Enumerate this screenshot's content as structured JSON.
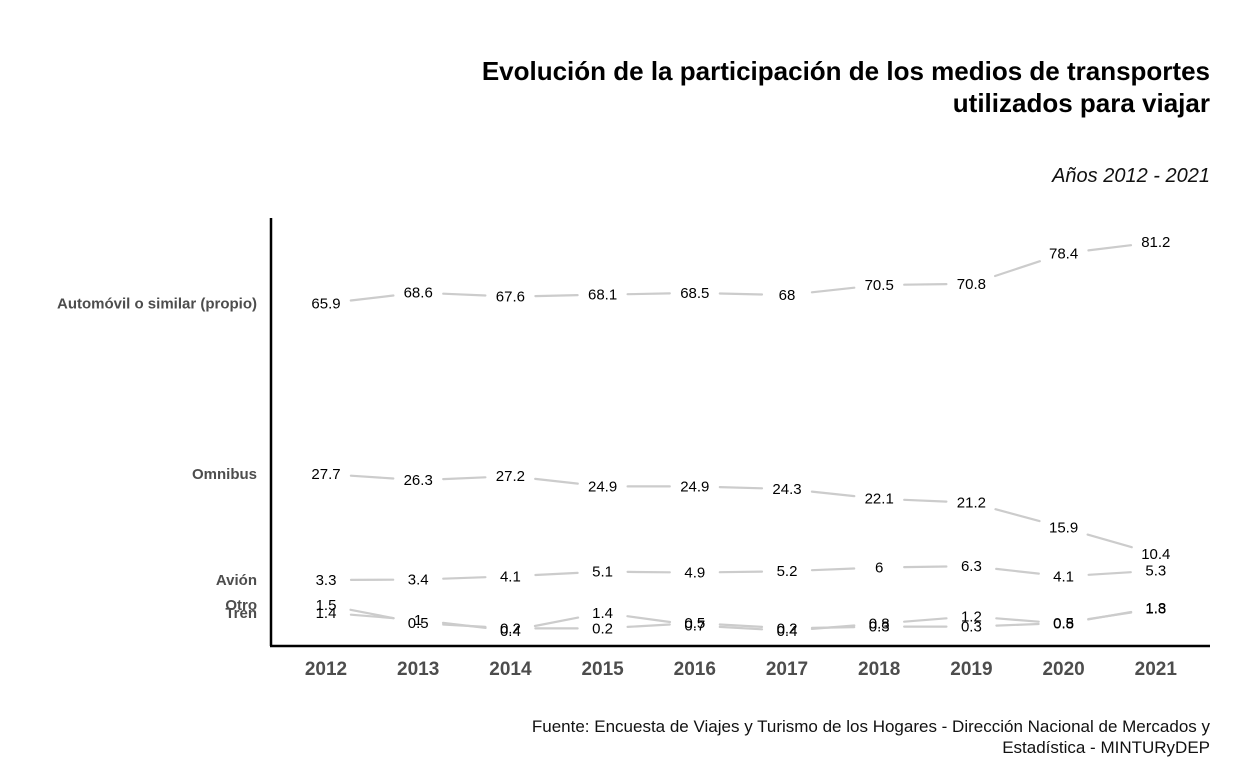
{
  "title": "Evolución de la participación de los medios de transportes utilizados para viajar",
  "subtitle": "Años 2012 - 2021",
  "source": "Fuente: Encuesta de Viajes y Turismo de los Hogares - Dirección Nacional de Mercados y Estadística - MINTURyDEP",
  "colors": {
    "connector": "#cccccc",
    "axis": "#000000",
    "row_label": "#4d4d4d",
    "tick_label": "#4d4d4d",
    "value_label": "#000000"
  },
  "chart_data": {
    "type": "line",
    "categories": [
      "2012",
      "2013",
      "2014",
      "2015",
      "2016",
      "2017",
      "2018",
      "2019",
      "2020",
      "2021"
    ],
    "series": [
      {
        "name": "Automóvil o similar (propio)",
        "values": [
          65.9,
          68.6,
          67.6,
          68.1,
          68.5,
          68,
          70.5,
          70.8,
          78.4,
          81.2
        ]
      },
      {
        "name": "Omnibus",
        "values": [
          27.7,
          26.3,
          27.2,
          24.9,
          24.9,
          24.3,
          22.1,
          21.2,
          15.9,
          10.4
        ]
      },
      {
        "name": "Avión",
        "values": [
          3.3,
          3.4,
          4.1,
          5.1,
          4.9,
          5.2,
          6,
          6.3,
          4.1,
          5.3
        ]
      },
      {
        "name": "Otro",
        "values": [
          1.5,
          0.5,
          0.2,
          0.2,
          0.5,
          0.2,
          0.3,
          0.3,
          0.5,
          1.3
        ]
      },
      {
        "name": "Tren",
        "values": [
          1.4,
          1,
          0.4,
          1.4,
          0.7,
          0.4,
          0.8,
          1.2,
          0.8,
          1.8
        ]
      }
    ],
    "title": "Evolución de la participación de los medios de transportes utilizados para viajar",
    "subtitle": "Años 2012 - 2021",
    "xlabel": "",
    "ylabel": "",
    "grid": false,
    "legend": "row labels on the left",
    "data_labels": true
  }
}
